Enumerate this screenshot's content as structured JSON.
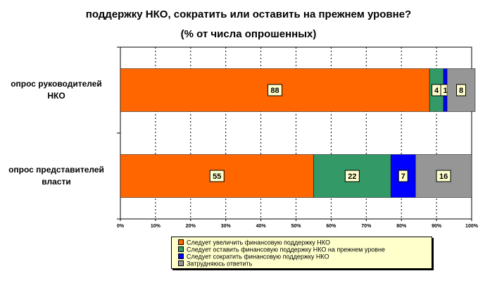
{
  "title_line1": "поддержку НКО, сократить или оставить на прежнем уровне?",
  "title_line2": "(% от числа опрошенных)",
  "chart_data": {
    "type": "bar",
    "orientation": "horizontal",
    "stacked": true,
    "percent": true,
    "categories": [
      "опрос руководителей НКО",
      "опрос представителей власти"
    ],
    "series": [
      {
        "name": "Следует увеличить финансовую поддержку НКО",
        "color": "#ff6600",
        "values": [
          88,
          55
        ]
      },
      {
        "name": "Следует оставить финансовую поддержку НКО на прежнем уровне",
        "color": "#339966",
        "values": [
          4,
          22
        ]
      },
      {
        "name": "Следует сократить финансовую поддержку НКО",
        "color": "#0000ff",
        "values": [
          1,
          7
        ]
      },
      {
        "name": "Затрудняюсь ответить",
        "color": "#969696",
        "values": [
          8,
          16
        ]
      }
    ],
    "xlim": [
      0,
      100
    ],
    "xticks": [
      "0%",
      "10%",
      "20%",
      "30%",
      "40%",
      "50%",
      "60%",
      "70%",
      "80%",
      "90%",
      "100%"
    ],
    "grid": true,
    "legend": "bottom"
  }
}
